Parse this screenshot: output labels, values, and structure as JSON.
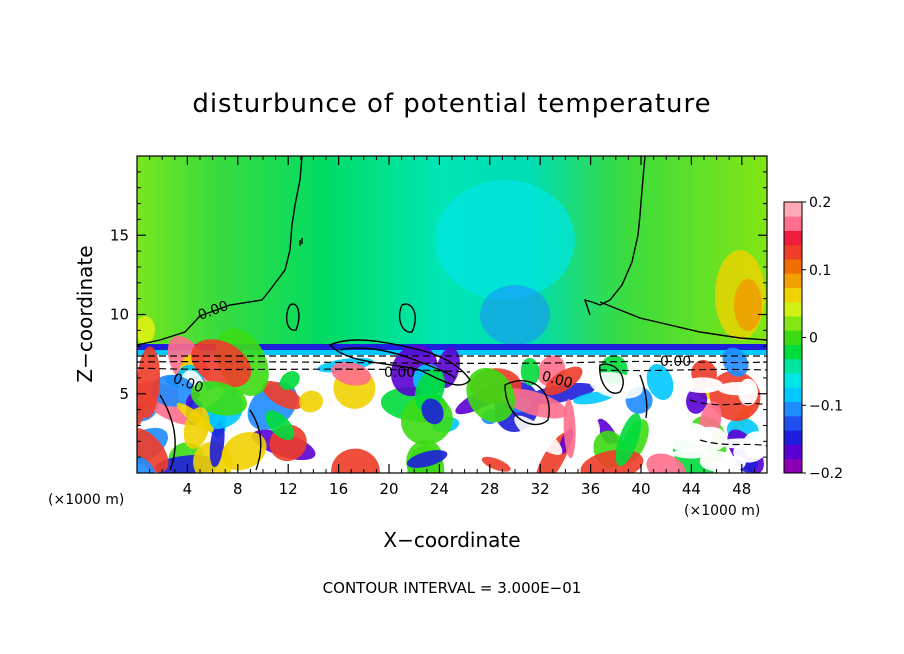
{
  "chart_data": {
    "type": "heatmap",
    "title": "disturbunce of potential temperature",
    "xlabel": "X−coordinate",
    "ylabel": "Z−coordinate",
    "x_unit": "(×1000 m)",
    "y_unit": "(×1000 m)",
    "xlim": [
      0,
      50
    ],
    "ylim": [
      0,
      20
    ],
    "x_ticks": [
      4,
      8,
      12,
      16,
      20,
      24,
      28,
      32,
      36,
      40,
      44,
      48
    ],
    "y_ticks": [
      5,
      10,
      15
    ],
    "colorbar": {
      "min": -0.2,
      "max": 0.2,
      "ticks": [
        0.2,
        0.1,
        0,
        -0.1,
        -0.2
      ],
      "tick_labels": [
        "0.2",
        "0.1",
        "0",
        "−0.1",
        "−0.2"
      ],
      "levels": [
        {
          "from": -0.2,
          "to": -0.175,
          "color": "#8b00b4"
        },
        {
          "from": -0.175,
          "to": -0.15,
          "color": "#5a00d2"
        },
        {
          "from": -0.15,
          "to": -0.125,
          "color": "#1e1edc"
        },
        {
          "from": -0.125,
          "to": -0.1,
          "color": "#1e50f0"
        },
        {
          "from": -0.1,
          "to": -0.075,
          "color": "#1e8cff"
        },
        {
          "from": -0.075,
          "to": -0.05,
          "color": "#00c8ff"
        },
        {
          "from": -0.05,
          "to": -0.025,
          "color": "#00e6e6"
        },
        {
          "from": -0.025,
          "to": 0.0,
          "color": "#00e6a0"
        },
        {
          "from": 0.0,
          "to": 0.025,
          "color": "#00dc3c"
        },
        {
          "from": 0.025,
          "to": 0.05,
          "color": "#3cdc14"
        },
        {
          "from": 0.05,
          "to": 0.075,
          "color": "#82e614"
        },
        {
          "from": 0.075,
          "to": 0.1,
          "color": "#d2f014"
        },
        {
          "from": 0.1,
          "to": 0.125,
          "color": "#f0d200"
        },
        {
          "from": 0.125,
          "to": 0.15,
          "color": "#f0a000"
        },
        {
          "from": 0.15,
          "to": 0.175,
          "color": "#f06e00"
        },
        {
          "from": 0.175,
          "to": 0.2,
          "color": "#f03c28"
        },
        {
          "from": 0.2,
          "to": 0.225,
          "color": "#f01e3c"
        },
        {
          "from": 0.225,
          "to": 0.25,
          "color": "#ff6e8c"
        },
        {
          "from": 0.25,
          "to": 0.275,
          "color": "#ffaab4"
        }
      ]
    },
    "contour_label": "0.00",
    "contour_interval_text": "CONTOUR INTERVAL = 3.000E−01",
    "grid": false,
    "legend": "right (colorbar)"
  }
}
